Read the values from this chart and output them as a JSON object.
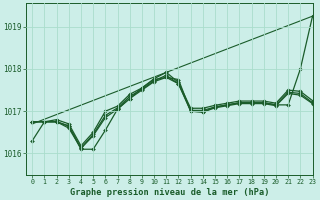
{
  "bg_color": "#cceee8",
  "grid_color": "#aaddcc",
  "line_color": "#1a5c2a",
  "title": "Graphe pression niveau de la mer (hPa)",
  "xlim": [
    -0.5,
    23
  ],
  "ylim": [
    1015.5,
    1019.55
  ],
  "yticks": [
    1016,
    1017,
    1018,
    1019
  ],
  "xticks": [
    0,
    1,
    2,
    3,
    4,
    5,
    6,
    7,
    8,
    9,
    10,
    11,
    12,
    13,
    14,
    15,
    16,
    17,
    18,
    19,
    20,
    21,
    22,
    23
  ],
  "series": [
    {
      "x": [
        0,
        1,
        2,
        3,
        4,
        5,
        6,
        7,
        8,
        9,
        10,
        11,
        12,
        13,
        14,
        15,
        16,
        17,
        18,
        19,
        20,
        21,
        22,
        23
      ],
      "y": [
        1016.3,
        1016.75,
        1016.75,
        1016.65,
        1016.1,
        1016.1,
        1016.55,
        1017.05,
        1017.3,
        1017.55,
        1017.75,
        1017.8,
        1017.75,
        1017.0,
        1016.98,
        1017.1,
        1017.15,
        1017.2,
        1017.2,
        1017.2,
        1017.15,
        1017.15,
        1018.0,
        1019.25
      ],
      "marker": true,
      "lw": 0.9
    },
    {
      "x": [
        0,
        1,
        2,
        3,
        4,
        5,
        6,
        7,
        8,
        9,
        10,
        11,
        12,
        13,
        14,
        15,
        16,
        17,
        18,
        19,
        20,
        21,
        22,
        23
      ],
      "y": [
        1016.75,
        1016.75,
        1016.75,
        1016.6,
        1016.12,
        1016.42,
        1016.85,
        1017.05,
        1017.3,
        1017.5,
        1017.7,
        1017.8,
        1017.65,
        1017.0,
        1016.98,
        1017.08,
        1017.13,
        1017.18,
        1017.18,
        1017.18,
        1017.13,
        1017.42,
        1017.38,
        1017.18
      ],
      "marker": true,
      "lw": 0.9
    },
    {
      "x": [
        0,
        1,
        2,
        3,
        4,
        5,
        6,
        7,
        8,
        9,
        10,
        11,
        12,
        13,
        14,
        15,
        16,
        17,
        18,
        19,
        20,
        21,
        22,
        23
      ],
      "y": [
        1016.75,
        1016.75,
        1016.75,
        1016.65,
        1016.13,
        1016.45,
        1016.9,
        1017.08,
        1017.35,
        1017.52,
        1017.72,
        1017.85,
        1017.65,
        1017.02,
        1017.02,
        1017.1,
        1017.15,
        1017.2,
        1017.2,
        1017.2,
        1017.15,
        1017.45,
        1017.42,
        1017.2
      ],
      "marker": true,
      "lw": 0.9
    },
    {
      "x": [
        0,
        1,
        2,
        3,
        4,
        5,
        6,
        7,
        8,
        9,
        10,
        11,
        12,
        13,
        14,
        15,
        16,
        17,
        18,
        19,
        20,
        21,
        22,
        23
      ],
      "y": [
        1016.75,
        1016.75,
        1016.8,
        1016.7,
        1016.18,
        1016.5,
        1017.0,
        1017.12,
        1017.4,
        1017.55,
        1017.77,
        1017.92,
        1017.68,
        1017.07,
        1017.07,
        1017.14,
        1017.19,
        1017.24,
        1017.24,
        1017.24,
        1017.19,
        1017.5,
        1017.47,
        1017.25
      ],
      "marker": true,
      "lw": 0.9
    },
    {
      "x": [
        0,
        23
      ],
      "y": [
        1016.7,
        1019.25
      ],
      "marker": false,
      "lw": 0.8
    }
  ]
}
